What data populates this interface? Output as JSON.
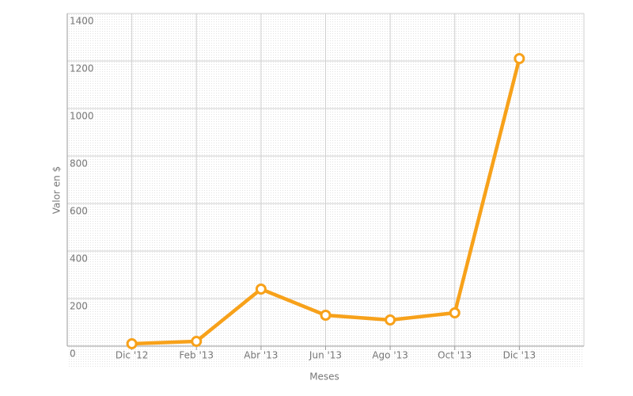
{
  "chart_data": {
    "type": "line",
    "x_label": "Meses",
    "y_label": "Valor en $",
    "categories": [
      "Dic '12",
      "Feb '13",
      "Abr '13",
      "Jun '13",
      "Ago '13",
      "Oct '13",
      "Dic '13"
    ],
    "series": [
      {
        "name": "Valor",
        "color": "#f7a11a",
        "values": [
          10,
          20,
          240,
          130,
          110,
          140,
          1210
        ]
      }
    ],
    "ylim": [
      0,
      1400
    ],
    "yticks": [
      0,
      200,
      400,
      600,
      800,
      1000,
      1200,
      1400
    ],
    "grid": true
  }
}
